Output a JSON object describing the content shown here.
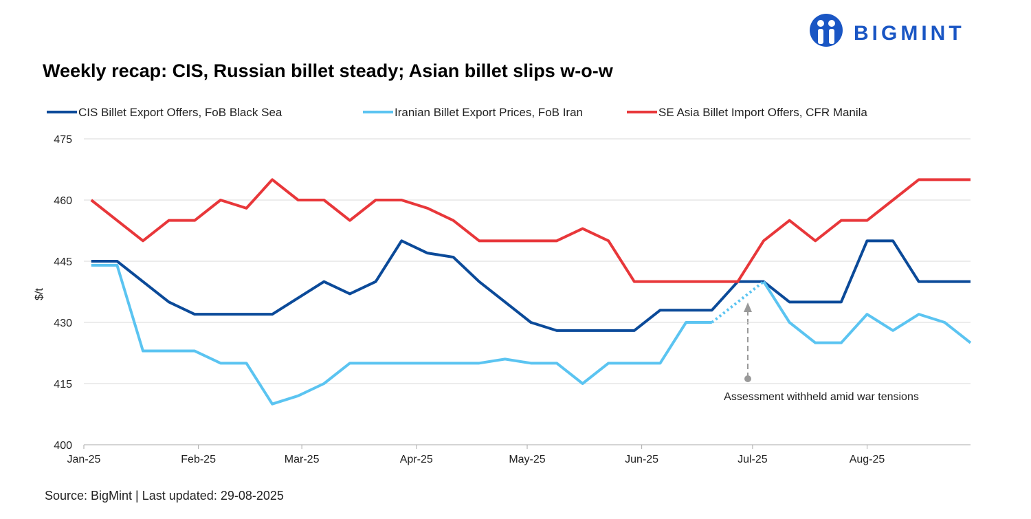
{
  "logo": "BIGMINT",
  "chart_data": {
    "type": "line",
    "title": "Weekly recap: CIS, Russian billet steady; Asian billet slips w-o-w",
    "y_label": "$/t",
    "source": "Source: BigMint | Last updated: 29-08-2025",
    "annotation": "Assessment withheld amid  war tensions",
    "x": [
      2,
      9,
      16,
      23,
      30,
      37,
      44,
      51,
      58,
      65,
      72,
      79,
      86,
      93,
      100,
      107,
      114,
      121,
      128,
      135,
      142,
      149,
      156,
      163,
      170,
      177,
      184,
      191,
      198,
      205,
      212,
      219,
      226,
      233,
      240
    ],
    "xlim": [
      0,
      240
    ],
    "xticks": [
      {
        "value": 0,
        "label": "Jan-25"
      },
      {
        "value": 31,
        "label": "Feb-25"
      },
      {
        "value": 59,
        "label": "Mar-25"
      },
      {
        "value": 90,
        "label": "Apr-25"
      },
      {
        "value": 120,
        "label": "May-25"
      },
      {
        "value": 151,
        "label": "Jun-25"
      },
      {
        "value": 181,
        "label": "Jul-25"
      },
      {
        "value": 212,
        "label": "Aug-25"
      }
    ],
    "ylim": [
      400,
      475
    ],
    "yticks": [
      400,
      415,
      430,
      445,
      460,
      475
    ],
    "grid": true,
    "series": [
      {
        "name": "CIS Billet Export Offers, FoB Black Sea",
        "color": "#0b4a99",
        "values": [
          445,
          445,
          440,
          435,
          432,
          432,
          432,
          432,
          436,
          440,
          437,
          440,
          450,
          447,
          446,
          440,
          435,
          430,
          428,
          428,
          428,
          428,
          433,
          433,
          433,
          440,
          440,
          435,
          435,
          435,
          450,
          450,
          440,
          440,
          440
        ]
      },
      {
        "name": "Iranian Billet Export Prices, FoB Iran",
        "color": "#5bc4f1",
        "values": [
          444,
          444,
          423,
          423,
          423,
          420,
          420,
          410,
          412,
          415,
          420,
          420,
          420,
          420,
          420,
          420,
          421,
          420,
          420,
          415,
          420,
          420,
          420,
          430,
          430,
          null,
          440,
          430,
          425,
          425,
          432,
          428,
          432,
          430,
          425
        ]
      },
      {
        "name": "SE Asia Billet Import Offers, CFR Manila",
        "color": "#e8373a",
        "values": [
          460,
          455,
          450,
          455,
          455,
          460,
          458,
          465,
          460,
          460,
          455,
          460,
          460,
          458,
          455,
          450,
          450,
          450,
          450,
          453,
          450,
          440,
          440,
          440,
          440,
          440,
          450,
          455,
          450,
          455,
          455,
          460,
          465,
          465,
          465
        ]
      }
    ]
  }
}
